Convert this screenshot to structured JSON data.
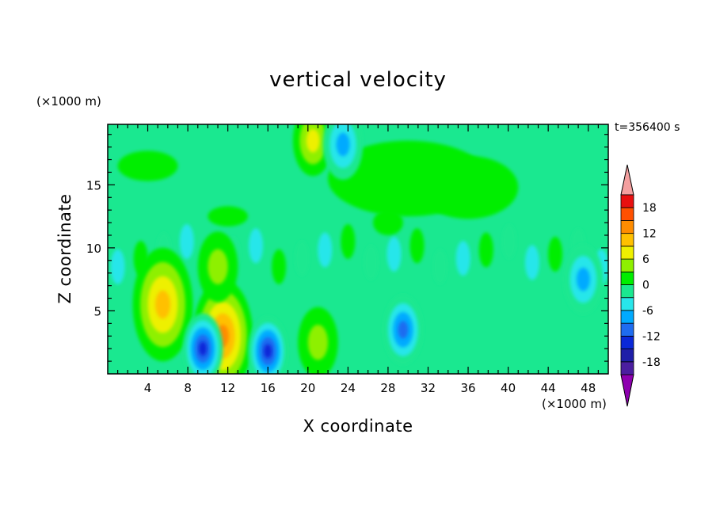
{
  "chart_data": {
    "type": "heatmap",
    "title": "vertical velocity",
    "xlabel": "X coordinate",
    "ylabel": "Z coordinate",
    "x_unit": "(×1000 m)",
    "y_unit": "(×1000 m)",
    "time_label": "t=356400 s",
    "xlim": [
      0,
      50
    ],
    "ylim": [
      0,
      19.8
    ],
    "x_ticks": [
      4,
      8,
      12,
      16,
      20,
      24,
      28,
      32,
      36,
      40,
      44,
      48
    ],
    "y_ticks": [
      5,
      10,
      15
    ],
    "colorbar": {
      "levels": [
        -21,
        -18,
        -15,
        -12,
        -9,
        -6,
        -3,
        0,
        3,
        6,
        9,
        12,
        15,
        18,
        21
      ],
      "tick_labels": [
        "18",
        "12",
        "6",
        "0",
        "-6",
        "-12",
        "-18"
      ],
      "tick_values": [
        18,
        12,
        6,
        0,
        -6,
        -12,
        -18
      ],
      "colors": [
        "#8e00b0",
        "#4b1ea0",
        "#1e1ea8",
        "#0a28d8",
        "#1e6cf0",
        "#00aaff",
        "#28e6ea",
        "#1ae890",
        "#00ee00",
        "#8ef000",
        "#eef000",
        "#ffc000",
        "#ff8c00",
        "#ff5000",
        "#e81010",
        "#f4a0a0"
      ]
    },
    "features": [
      {
        "kind": "updraft",
        "x": 5.5,
        "z": 5.5,
        "peak": 12
      },
      {
        "kind": "updraft",
        "x": 11.5,
        "z": 3.0,
        "peak": 16
      },
      {
        "kind": "updraft",
        "x": 11.0,
        "z": 8.5,
        "peak": 6
      },
      {
        "kind": "updraft",
        "x": 20.5,
        "z": 18.5,
        "peak": 8
      },
      {
        "kind": "updraft",
        "x": 21.0,
        "z": 2.5,
        "peak": 5
      },
      {
        "kind": "downdraft",
        "x": 9.5,
        "z": 2.0,
        "peak": -14
      },
      {
        "kind": "downdraft",
        "x": 16.0,
        "z": 1.8,
        "peak": -15
      },
      {
        "kind": "downdraft",
        "x": 29.5,
        "z": 3.5,
        "peak": -12
      },
      {
        "kind": "downdraft",
        "x": 23.5,
        "z": 18.2,
        "peak": -9
      },
      {
        "kind": "downdraft",
        "x": 47.5,
        "z": 7.5,
        "peak": -8
      }
    ]
  }
}
